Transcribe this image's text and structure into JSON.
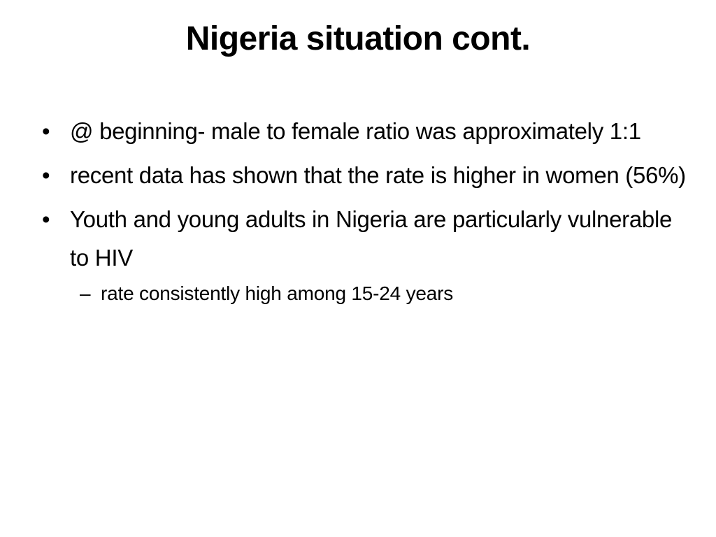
{
  "slide": {
    "title": "Nigeria situation cont.",
    "bullet_marker": "•",
    "sub_marker": "–",
    "bullets": [
      {
        "text": "@ beginning- male to female ratio was approximately 1:1"
      },
      {
        "text": "recent data has shown that the rate is higher in women (56%)"
      },
      {
        "text": "Youth and young adults in Nigeria are particularly vulnerable to HIV"
      }
    ],
    "sub_bullets": [
      {
        "text": "rate consistently high among 15-24 years"
      }
    ]
  }
}
